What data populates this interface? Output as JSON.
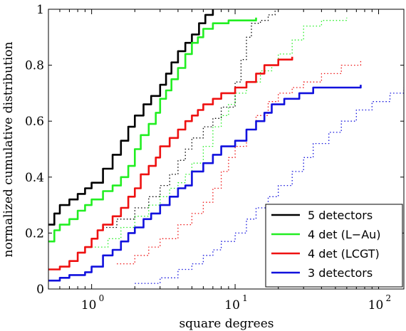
{
  "chart_data": {
    "type": "line",
    "xlabel": "square degrees",
    "ylabel": "normalized cumulative distribution",
    "xscale": "log",
    "xlim": [
      0.5,
      150
    ],
    "ylim": [
      0,
      1
    ],
    "grid": false,
    "legend_position": "bottom-right",
    "y_ticks": [
      {
        "value": 0,
        "label": "0"
      },
      {
        "value": 0.2,
        "label": "0.2"
      },
      {
        "value": 0.4,
        "label": "0.4"
      },
      {
        "value": 0.6,
        "label": "0.6"
      },
      {
        "value": 0.8,
        "label": "0.8"
      },
      {
        "value": 1,
        "label": "1"
      }
    ],
    "x_ticks": [
      {
        "value": 1,
        "base": "10",
        "exp": "0"
      },
      {
        "value": 10,
        "base": "10",
        "exp": "1"
      },
      {
        "value": 100,
        "base": "10",
        "exp": "2"
      }
    ],
    "series": [
      {
        "name": "5 detectors",
        "color": "#000000",
        "style": "solid",
        "points": [
          [
            0.5,
            0.23
          ],
          [
            0.55,
            0.27
          ],
          [
            0.6,
            0.3
          ],
          [
            0.7,
            0.32
          ],
          [
            0.8,
            0.34
          ],
          [
            0.9,
            0.36
          ],
          [
            1.0,
            0.38
          ],
          [
            1.2,
            0.43
          ],
          [
            1.4,
            0.48
          ],
          [
            1.6,
            0.53
          ],
          [
            1.8,
            0.58
          ],
          [
            2.0,
            0.62
          ],
          [
            2.3,
            0.66
          ],
          [
            2.6,
            0.69
          ],
          [
            3.0,
            0.73
          ],
          [
            3.3,
            0.77
          ],
          [
            3.6,
            0.81
          ],
          [
            4.0,
            0.85
          ],
          [
            4.5,
            0.88
          ],
          [
            5.0,
            0.91
          ],
          [
            5.6,
            0.95
          ],
          [
            6.2,
            0.98
          ],
          [
            7.0,
            1.0
          ]
        ]
      },
      {
        "name": "",
        "color": "#000000",
        "style": "dotted",
        "points": [
          [
            1.2,
            0.22
          ],
          [
            1.5,
            0.25
          ],
          [
            2.0,
            0.29
          ],
          [
            2.5,
            0.33
          ],
          [
            3.0,
            0.37
          ],
          [
            3.5,
            0.41
          ],
          [
            4.0,
            0.46
          ],
          [
            4.5,
            0.5
          ],
          [
            5.0,
            0.54
          ],
          [
            6.0,
            0.58
          ],
          [
            7.0,
            0.61
          ],
          [
            8.0,
            0.65
          ],
          [
            10.0,
            0.74
          ],
          [
            11.0,
            0.82
          ],
          [
            12.0,
            0.9
          ],
          [
            13.0,
            0.95
          ],
          [
            15.0,
            0.96
          ],
          [
            17.0,
            0.98
          ],
          [
            19.0,
            1.0
          ]
        ]
      },
      {
        "name": "4 det (L−Au)",
        "color": "#22ee22",
        "style": "solid",
        "points": [
          [
            0.5,
            0.17
          ],
          [
            0.55,
            0.21
          ],
          [
            0.6,
            0.23
          ],
          [
            0.7,
            0.25
          ],
          [
            0.8,
            0.28
          ],
          [
            0.9,
            0.3
          ],
          [
            1.0,
            0.32
          ],
          [
            1.2,
            0.35
          ],
          [
            1.4,
            0.37
          ],
          [
            1.6,
            0.4
          ],
          [
            1.8,
            0.44
          ],
          [
            2.0,
            0.5
          ],
          [
            2.2,
            0.55
          ],
          [
            2.5,
            0.59
          ],
          [
            2.8,
            0.63
          ],
          [
            3.0,
            0.68
          ],
          [
            3.3,
            0.71
          ],
          [
            3.6,
            0.75
          ],
          [
            4.0,
            0.79
          ],
          [
            4.5,
            0.84
          ],
          [
            5.0,
            0.88
          ],
          [
            5.5,
            0.9
          ],
          [
            6.0,
            0.93
          ],
          [
            7.0,
            0.95
          ],
          [
            9.0,
            0.96
          ],
          [
            14.0,
            0.97
          ]
        ]
      },
      {
        "name": "",
        "color": "#22ee22",
        "style": "dotted",
        "points": [
          [
            1.0,
            0.15
          ],
          [
            1.3,
            0.18
          ],
          [
            1.6,
            0.22
          ],
          [
            2.0,
            0.26
          ],
          [
            2.5,
            0.3
          ],
          [
            3.0,
            0.33
          ],
          [
            3.5,
            0.36
          ],
          [
            4.0,
            0.38
          ],
          [
            4.5,
            0.41
          ],
          [
            5.0,
            0.45
          ],
          [
            6.0,
            0.51
          ],
          [
            7.0,
            0.58
          ],
          [
            8.0,
            0.62
          ],
          [
            9.0,
            0.66
          ],
          [
            10.0,
            0.7
          ],
          [
            12.0,
            0.74
          ],
          [
            15.0,
            0.78
          ],
          [
            18.0,
            0.8
          ],
          [
            20.0,
            0.84
          ],
          [
            25.0,
            0.89
          ],
          [
            30.0,
            0.94
          ],
          [
            40.0,
            0.96
          ],
          [
            60.0,
            0.97
          ]
        ]
      },
      {
        "name": "4 det (LCGT)",
        "color": "#ee1111",
        "style": "solid",
        "points": [
          [
            0.5,
            0.07
          ],
          [
            0.6,
            0.08
          ],
          [
            0.7,
            0.1
          ],
          [
            0.8,
            0.13
          ],
          [
            0.9,
            0.15
          ],
          [
            1.0,
            0.18
          ],
          [
            1.1,
            0.21
          ],
          [
            1.2,
            0.23
          ],
          [
            1.4,
            0.26
          ],
          [
            1.6,
            0.29
          ],
          [
            1.8,
            0.33
          ],
          [
            2.0,
            0.36
          ],
          [
            2.2,
            0.41
          ],
          [
            2.5,
            0.44
          ],
          [
            2.8,
            0.47
          ],
          [
            3.0,
            0.51
          ],
          [
            3.5,
            0.54
          ],
          [
            4.0,
            0.57
          ],
          [
            4.5,
            0.6
          ],
          [
            5.0,
            0.62
          ],
          [
            5.5,
            0.64
          ],
          [
            6.0,
            0.66
          ],
          [
            7.0,
            0.68
          ],
          [
            8.0,
            0.7
          ],
          [
            10.0,
            0.72
          ],
          [
            12.0,
            0.74
          ],
          [
            14.0,
            0.77
          ],
          [
            16.0,
            0.8
          ],
          [
            20.0,
            0.82
          ],
          [
            25.0,
            0.83
          ]
        ]
      },
      {
        "name": "",
        "color": "#ee1111",
        "style": "dotted",
        "points": [
          [
            1.5,
            0.09
          ],
          [
            2.0,
            0.12
          ],
          [
            2.5,
            0.15
          ],
          [
            3.0,
            0.18
          ],
          [
            4.0,
            0.23
          ],
          [
            5.0,
            0.27
          ],
          [
            6.0,
            0.31
          ],
          [
            7.0,
            0.36
          ],
          [
            8.0,
            0.42
          ],
          [
            9.0,
            0.47
          ],
          [
            10.0,
            0.51
          ],
          [
            12.0,
            0.57
          ],
          [
            14.0,
            0.62
          ],
          [
            17.0,
            0.67
          ],
          [
            20.0,
            0.7
          ],
          [
            25.0,
            0.72
          ],
          [
            30.0,
            0.74
          ],
          [
            40.0,
            0.77
          ],
          [
            55.0,
            0.8
          ],
          [
            75.0,
            0.82
          ]
        ]
      },
      {
        "name": "3 detectors",
        "color": "#1111dd",
        "style": "solid",
        "points": [
          [
            0.5,
            0.03
          ],
          [
            0.6,
            0.04
          ],
          [
            0.7,
            0.05
          ],
          [
            0.8,
            0.05
          ],
          [
            0.9,
            0.06
          ],
          [
            1.0,
            0.08
          ],
          [
            1.2,
            0.12
          ],
          [
            1.4,
            0.14
          ],
          [
            1.6,
            0.17
          ],
          [
            1.8,
            0.2
          ],
          [
            2.0,
            0.22
          ],
          [
            2.3,
            0.25
          ],
          [
            2.6,
            0.27
          ],
          [
            3.0,
            0.3
          ],
          [
            3.5,
            0.33
          ],
          [
            4.0,
            0.36
          ],
          [
            4.5,
            0.37
          ],
          [
            5.0,
            0.42
          ],
          [
            6.0,
            0.45
          ],
          [
            7.0,
            0.48
          ],
          [
            8.0,
            0.51
          ],
          [
            10.0,
            0.53
          ],
          [
            12.0,
            0.57
          ],
          [
            14.0,
            0.6
          ],
          [
            16.0,
            0.63
          ],
          [
            18.0,
            0.66
          ],
          [
            22.0,
            0.68
          ],
          [
            28.0,
            0.7
          ],
          [
            35.0,
            0.72
          ],
          [
            50.0,
            0.72
          ],
          [
            75.0,
            0.73
          ]
        ]
      },
      {
        "name": "",
        "color": "#1111dd",
        "style": "dotted",
        "points": [
          [
            2.0,
            0.02
          ],
          [
            3.0,
            0.04
          ],
          [
            4.0,
            0.07
          ],
          [
            5.0,
            0.09
          ],
          [
            6.0,
            0.12
          ],
          [
            7.0,
            0.14
          ],
          [
            8.0,
            0.17
          ],
          [
            10.0,
            0.2
          ],
          [
            12.0,
            0.25
          ],
          [
            14.0,
            0.29
          ],
          [
            17.0,
            0.33
          ],
          [
            20.0,
            0.37
          ],
          [
            25.0,
            0.42
          ],
          [
            30.0,
            0.47
          ],
          [
            35.0,
            0.52
          ],
          [
            45.0,
            0.56
          ],
          [
            55.0,
            0.6
          ],
          [
            70.0,
            0.64
          ],
          [
            90.0,
            0.67
          ],
          [
            120.0,
            0.7
          ],
          [
            150.0,
            0.72
          ]
        ]
      }
    ]
  }
}
